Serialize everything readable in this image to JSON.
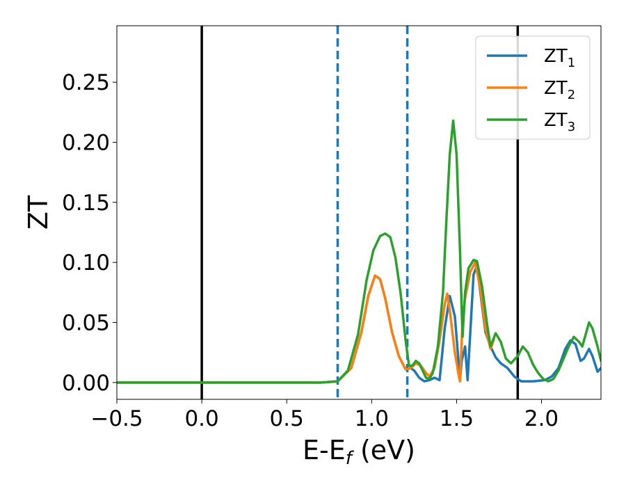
{
  "chart_data": {
    "type": "line",
    "title": "",
    "xlabel": "E-E",
    "xlabel_subscript": "f",
    "xlabel_unit": " (eV)",
    "ylabel": "ZT",
    "xlim": [
      -0.5,
      2.35
    ],
    "ylim": [
      -0.014,
      0.297
    ],
    "xticks": [
      -0.5,
      0.0,
      0.5,
      1.0,
      1.5,
      2.0
    ],
    "xtick_labels": [
      "−0.5",
      "0.0",
      "0.5",
      "1.0",
      "1.5",
      "2.0"
    ],
    "yticks": [
      0.0,
      0.05,
      0.1,
      0.15,
      0.2,
      0.25
    ],
    "ytick_labels": [
      "0.00",
      "0.05",
      "0.10",
      "0.15",
      "0.20",
      "0.25"
    ],
    "grid": false,
    "legend_position": "top-right",
    "vlines": [
      {
        "x": 0.0,
        "style": "solid",
        "color": "#000000"
      },
      {
        "x": 0.8,
        "style": "dashed",
        "color": "#1f77b4"
      },
      {
        "x": 1.21,
        "style": "dashed",
        "color": "#1f77b4"
      },
      {
        "x": 1.86,
        "style": "solid",
        "color": "#000000"
      }
    ],
    "series": [
      {
        "name": "ZT",
        "subscript": "1",
        "color": "#1f77b4",
        "points": [
          [
            -0.5,
            0
          ],
          [
            0.7,
            0
          ],
          [
            0.8,
            0.001
          ],
          [
            0.88,
            0.012
          ],
          [
            0.94,
            0.042
          ],
          [
            0.98,
            0.072
          ],
          [
            1.02,
            0.089
          ],
          [
            1.05,
            0.086
          ],
          [
            1.08,
            0.07
          ],
          [
            1.12,
            0.042
          ],
          [
            1.16,
            0.022
          ],
          [
            1.2,
            0.011
          ],
          [
            1.23,
            0.012
          ],
          [
            1.25,
            0.01
          ],
          [
            1.28,
            0.004
          ],
          [
            1.31,
            0.001
          ],
          [
            1.34,
            0.002
          ],
          [
            1.37,
            0.004
          ],
          [
            1.4,
            0.002
          ],
          [
            1.43,
            0.045
          ],
          [
            1.46,
            0.072
          ],
          [
            1.49,
            0.055
          ],
          [
            1.51,
            0.02
          ],
          [
            1.52,
            0.002
          ],
          [
            1.53,
            0.018
          ],
          [
            1.55,
            0.03
          ],
          [
            1.565,
            0.002
          ],
          [
            1.58,
            0.04
          ],
          [
            1.6,
            0.09
          ],
          [
            1.62,
            0.097
          ],
          [
            1.64,
            0.075
          ],
          [
            1.67,
            0.042
          ],
          [
            1.7,
            0.03
          ],
          [
            1.73,
            0.021
          ],
          [
            1.76,
            0.016
          ],
          [
            1.8,
            0.012
          ],
          [
            1.84,
            0.005
          ],
          [
            1.88,
            0.001
          ],
          [
            1.95,
            0.001
          ],
          [
            2.02,
            0.002
          ],
          [
            2.06,
            0.005
          ],
          [
            2.1,
            0.012
          ],
          [
            2.14,
            0.028
          ],
          [
            2.17,
            0.035
          ],
          [
            2.2,
            0.032
          ],
          [
            2.23,
            0.018
          ],
          [
            2.25,
            0.02
          ],
          [
            2.28,
            0.028
          ],
          [
            2.3,
            0.022
          ],
          [
            2.33,
            0.009
          ],
          [
            2.35,
            0.012
          ]
        ]
      },
      {
        "name": "ZT",
        "subscript": "2",
        "color": "#ff7f0e",
        "points": [
          [
            -0.5,
            0
          ],
          [
            0.7,
            0
          ],
          [
            0.8,
            0.001
          ],
          [
            0.88,
            0.012
          ],
          [
            0.94,
            0.042
          ],
          [
            0.98,
            0.072
          ],
          [
            1.02,
            0.089
          ],
          [
            1.05,
            0.086
          ],
          [
            1.08,
            0.07
          ],
          [
            1.12,
            0.042
          ],
          [
            1.16,
            0.022
          ],
          [
            1.2,
            0.011
          ],
          [
            1.23,
            0.012
          ],
          [
            1.26,
            0.016
          ],
          [
            1.29,
            0.014
          ],
          [
            1.32,
            0.008
          ],
          [
            1.34,
            0.005
          ],
          [
            1.37,
            0.012
          ],
          [
            1.4,
            0.035
          ],
          [
            1.43,
            0.065
          ],
          [
            1.445,
            0.074
          ],
          [
            1.46,
            0.06
          ],
          [
            1.49,
            0.025
          ],
          [
            1.51,
            0.008
          ],
          [
            1.52,
            0.001
          ],
          [
            1.535,
            0.05
          ],
          [
            1.55,
            0.07
          ],
          [
            1.58,
            0.092
          ],
          [
            1.61,
            0.1
          ],
          [
            1.64,
            0.078
          ],
          [
            1.67,
            0.045
          ],
          [
            1.7,
            0.028
          ],
          [
            1.72,
            0.036
          ]
        ]
      },
      {
        "name": "ZT",
        "subscript": "3",
        "color": "#2ca02c",
        "points": [
          [
            -0.5,
            0
          ],
          [
            0.7,
            0
          ],
          [
            0.8,
            0.001
          ],
          [
            0.86,
            0.01
          ],
          [
            0.92,
            0.04
          ],
          [
            0.97,
            0.085
          ],
          [
            1.01,
            0.11
          ],
          [
            1.05,
            0.122
          ],
          [
            1.08,
            0.124
          ],
          [
            1.11,
            0.121
          ],
          [
            1.14,
            0.104
          ],
          [
            1.17,
            0.075
          ],
          [
            1.2,
            0.035
          ],
          [
            1.22,
            0.014
          ],
          [
            1.24,
            0.014
          ],
          [
            1.26,
            0.018
          ],
          [
            1.28,
            0.016
          ],
          [
            1.3,
            0.01
          ],
          [
            1.32,
            0.004
          ],
          [
            1.34,
            0.003
          ],
          [
            1.36,
            0.008
          ],
          [
            1.39,
            0.03
          ],
          [
            1.42,
            0.075
          ],
          [
            1.44,
            0.135
          ],
          [
            1.46,
            0.19
          ],
          [
            1.48,
            0.218
          ],
          [
            1.5,
            0.19
          ],
          [
            1.52,
            0.11
          ],
          [
            1.535,
            0.038
          ],
          [
            1.55,
            0.075
          ],
          [
            1.57,
            0.095
          ],
          [
            1.6,
            0.102
          ],
          [
            1.62,
            0.101
          ],
          [
            1.65,
            0.08
          ],
          [
            1.68,
            0.048
          ],
          [
            1.7,
            0.03
          ],
          [
            1.73,
            0.041
          ],
          [
            1.76,
            0.034
          ],
          [
            1.79,
            0.02
          ],
          [
            1.82,
            0.016
          ],
          [
            1.86,
            0.022
          ],
          [
            1.89,
            0.03
          ],
          [
            1.92,
            0.025
          ],
          [
            1.95,
            0.015
          ],
          [
            1.98,
            0.008
          ],
          [
            2.01,
            0.003
          ],
          [
            2.04,
            0.001
          ],
          [
            2.07,
            0.003
          ],
          [
            2.1,
            0.01
          ],
          [
            2.13,
            0.02
          ],
          [
            2.16,
            0.03
          ],
          [
            2.19,
            0.038
          ],
          [
            2.22,
            0.034
          ],
          [
            2.24,
            0.03
          ],
          [
            2.26,
            0.04
          ],
          [
            2.28,
            0.05
          ],
          [
            2.3,
            0.045
          ],
          [
            2.33,
            0.03
          ],
          [
            2.35,
            0.018
          ]
        ]
      }
    ]
  }
}
